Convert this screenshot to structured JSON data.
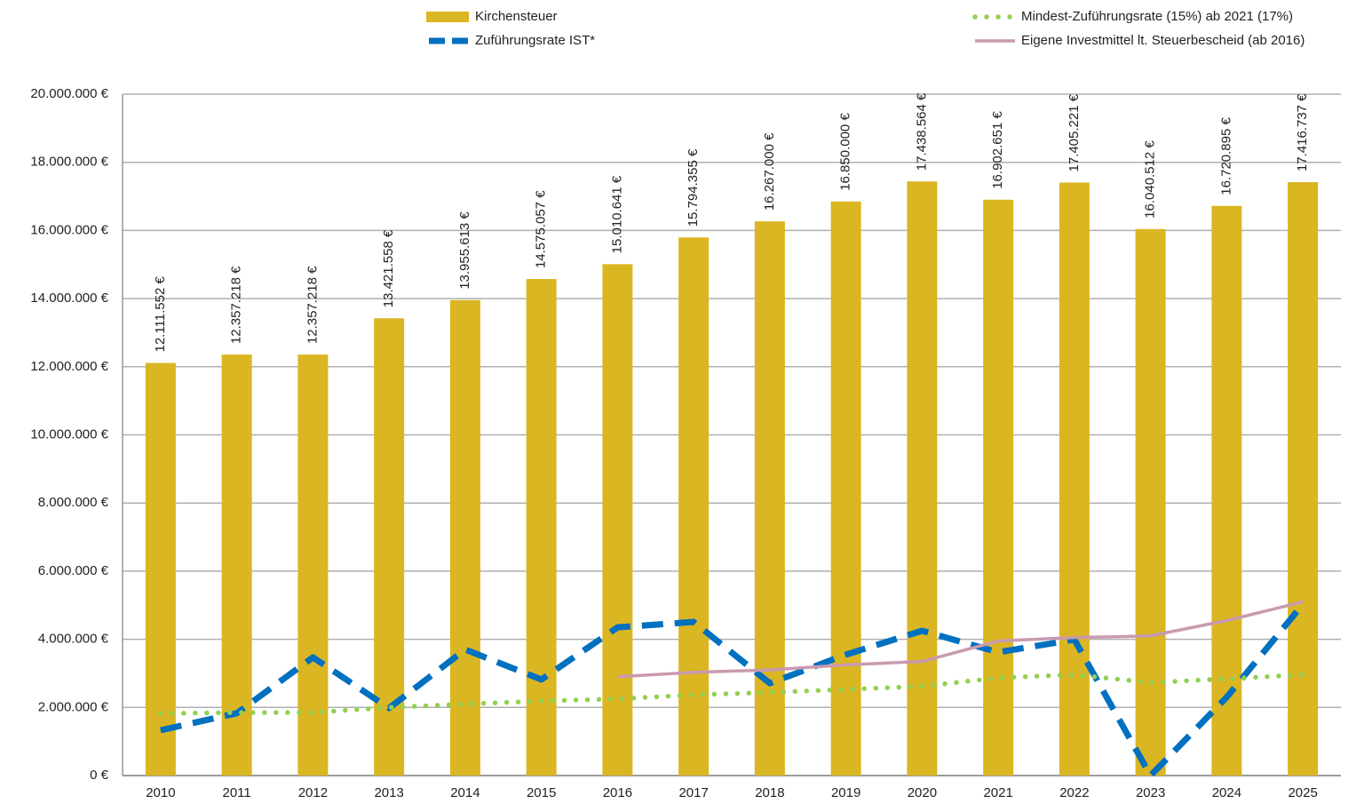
{
  "chart_data": {
    "type": "bar",
    "categories": [
      "2010",
      "2011",
      "2012",
      "2013",
      "2014",
      "2015",
      "2016",
      "2017",
      "2018",
      "2019",
      "2020",
      "2021",
      "2022",
      "2023",
      "2024",
      "2025"
    ],
    "series": [
      {
        "name": "Kirchensteuer",
        "type": "bar",
        "color": "#dbb623",
        "values": [
          12111552,
          12357218,
          12357218,
          13421558,
          13955613,
          14575057,
          15010641,
          15794355,
          16267000,
          16850000,
          17438564,
          16902651,
          17405221,
          16040512,
          16720895,
          17416737
        ],
        "value_labels": [
          "12.111.552 €",
          "12.357.218 €",
          "12.357.218 €",
          "13.421.558 €",
          "13.955.613 €",
          "14.575.057 €",
          "15.010.641 €",
          "15.794.355 €",
          "16.267.000 €",
          "16.850.000 €",
          "17.438.564 €",
          "16.902.651 €",
          "17.405.221 €",
          "16.040.512 €",
          "16.720.895 €",
          "17.416.737 €"
        ]
      },
      {
        "name": "Zuführungsrate IST*",
        "type": "line",
        "dash": "dashed",
        "color": "#0070c0",
        "values": [
          1330000,
          1830000,
          3470000,
          1980000,
          3700000,
          2820000,
          4350000,
          4510000,
          2710000,
          3550000,
          4250000,
          3620000,
          3990000,
          0,
          2300000,
          5030000
        ]
      },
      {
        "name": "Mindest-Zuführungsrate  (15%) ab 2021 (17%)",
        "type": "line",
        "dash": "dotted",
        "color": "#92d050",
        "values": [
          1820000,
          1850000,
          1850000,
          2000000,
          2100000,
          2190000,
          2250000,
          2370000,
          2440000,
          2530000,
          2620000,
          2870000,
          2960000,
          2730000,
          2840000,
          2960000
        ]
      },
      {
        "name": "Eigene Investmittel lt. Steuerbescheid (ab 2016)",
        "type": "line",
        "dash": "solid",
        "color": "#c99ab0",
        "values": [
          null,
          null,
          null,
          null,
          null,
          null,
          2900000,
          3030000,
          3100000,
          3250000,
          3350000,
          3950000,
          4050000,
          4100000,
          4550000,
          5100000
        ]
      }
    ],
    "ylim": [
      0,
      20000000
    ],
    "yticks": [
      {
        "value": 0,
        "label": "0 €"
      },
      {
        "value": 2000000,
        "label": "2.000.000 €"
      },
      {
        "value": 4000000,
        "label": "4.000.000 €"
      },
      {
        "value": 6000000,
        "label": "6.000.000 €"
      },
      {
        "value": 8000000,
        "label": "8.000.000 €"
      },
      {
        "value": 10000000,
        "label": "10.000.000 €"
      },
      {
        "value": 12000000,
        "label": "12.000.000 €"
      },
      {
        "value": 14000000,
        "label": "14.000.000 €"
      },
      {
        "value": 16000000,
        "label": "16.000.000 €"
      },
      {
        "value": 18000000,
        "label": "18.000.000 €"
      },
      {
        "value": 20000000,
        "label": "20.000.000 €"
      }
    ],
    "grid": true,
    "legend": "top"
  }
}
